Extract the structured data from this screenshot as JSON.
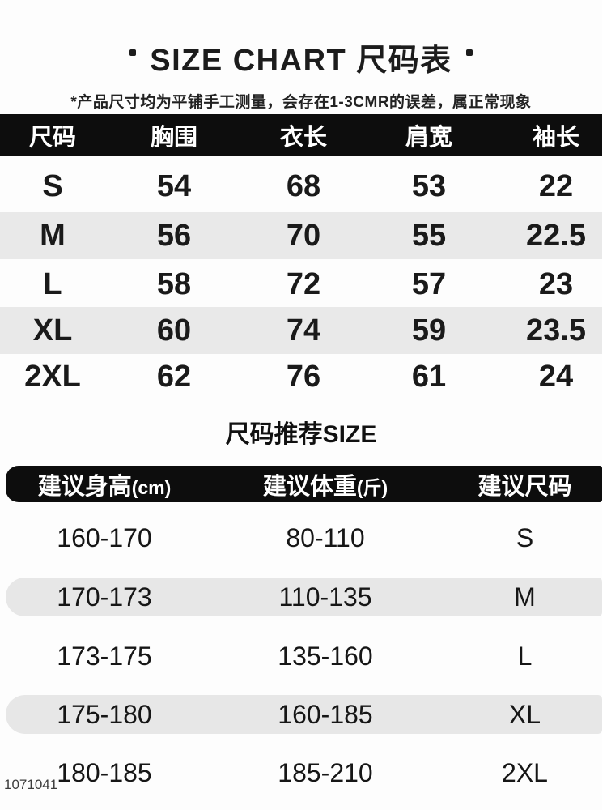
{
  "header": {
    "title": "SIZE CHART 尺码表",
    "note": "*产品尺寸均为平铺手工测量，会存在1-3CMR的误差，属正常现象"
  },
  "watermark": "1071041",
  "colors": {
    "bar_black": "#0d0d0d",
    "stripe_gray": "#e9e9e9",
    "text_black": "#1a1a1a",
    "header_text_white": "#ffffff",
    "watermark_gray": "#3d3d3d"
  },
  "recommend": {
    "columns_split": [
      {
        "main": "建议身高",
        "suffix": "(cm)"
      },
      {
        "main": "建议体重",
        "suffix": "(斤)"
      },
      {
        "main": "建议尺码",
        "suffix": ""
      }
    ]
  },
  "chart_data": [
    {
      "type": "table",
      "title": "SIZE CHART 尺码表",
      "note": "*产品尺寸均为平铺手工测量，会存在1-3CMR的误差，属正常现象",
      "columns": [
        "尺码",
        "胸围",
        "衣长",
        "肩宽",
        "袖长"
      ],
      "rows": [
        [
          "S",
          "54",
          "68",
          "53",
          "22"
        ],
        [
          "M",
          "56",
          "70",
          "55",
          "22.5"
        ],
        [
          "L",
          "58",
          "72",
          "57",
          "23"
        ],
        [
          "XL",
          "60",
          "74",
          "59",
          "23.5"
        ],
        [
          "2XL",
          "62",
          "76",
          "61",
          "24"
        ]
      ]
    },
    {
      "type": "table",
      "title": "尺码推荐SIZE",
      "columns": [
        "建议身高(cm)",
        "建议体重(斤)",
        "建议尺码"
      ],
      "rows": [
        [
          "160-170",
          "80-110",
          "S"
        ],
        [
          "170-173",
          "110-135",
          "M"
        ],
        [
          "173-175",
          "135-160",
          "L"
        ],
        [
          "175-180",
          "160-185",
          "XL"
        ],
        [
          "180-185",
          "185-210",
          "2XL"
        ]
      ]
    }
  ]
}
